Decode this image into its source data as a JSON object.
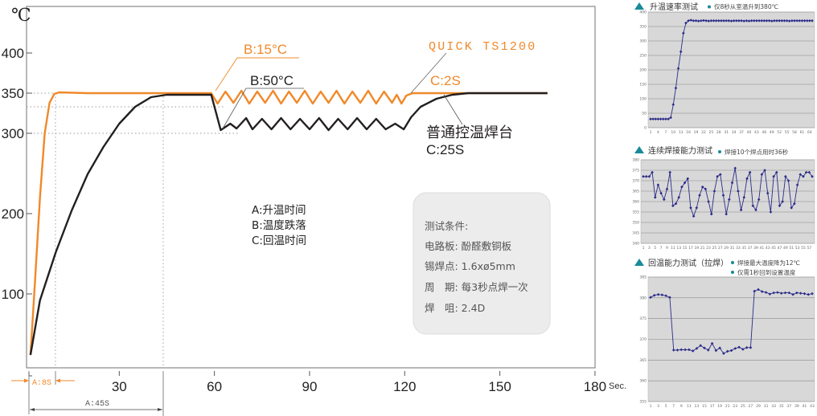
{
  "colors": {
    "orange": "#f0892a",
    "black": "#231f20",
    "mini_series": "#2a2a8a",
    "mini_bg": "#d8d8d8",
    "accent": "#1a8a9a",
    "panel": "#ececec"
  },
  "chart_data": [
    {
      "type": "line",
      "ylabel": "℃",
      "xlabel": "Sec.",
      "xlim": [
        0,
        180
      ],
      "ylim": [
        8,
        466
      ],
      "x_ticks": [
        30,
        60,
        90,
        120,
        150,
        180
      ],
      "y_ticks": [
        100,
        200,
        300,
        350,
        400
      ],
      "grid": false,
      "series": [
        {
          "name": "QUICK TS1200",
          "color": "#f0892a",
          "points": [
            [
              2,
              24
            ],
            [
              3.5,
              120
            ],
            [
              5,
              220
            ],
            [
              6.5,
              300
            ],
            [
              8,
              338
            ],
            [
              9.5,
              349
            ],
            [
              11,
              351
            ],
            [
              20,
              350
            ],
            [
              59,
              350
            ],
            [
              61,
              337
            ],
            [
              63.5,
              352
            ],
            [
              66,
              338
            ],
            [
              68.5,
              353
            ],
            [
              71,
              337
            ],
            [
              73.5,
              352
            ],
            [
              76,
              338
            ],
            [
              78.5,
              353
            ],
            [
              81,
              337
            ],
            [
              83.5,
              352
            ],
            [
              86,
              338
            ],
            [
              88.5,
              353
            ],
            [
              91,
              337
            ],
            [
              93.5,
              352
            ],
            [
              96,
              338
            ],
            [
              98.5,
              353
            ],
            [
              101,
              337
            ],
            [
              103.5,
              352
            ],
            [
              106,
              338
            ],
            [
              108.5,
              353
            ],
            [
              111,
              337
            ],
            [
              113.5,
              352
            ],
            [
              116,
              338
            ],
            [
              117.5,
              348
            ],
            [
              119,
              337
            ],
            [
              120.5,
              347
            ],
            [
              122.5,
              350
            ],
            [
              165,
              350
            ]
          ]
        },
        {
          "name": "普通控温焊台",
          "color": "#231f20",
          "points": [
            [
              2,
              24
            ],
            [
              5,
              92
            ],
            [
              10,
              152
            ],
            [
              15,
              204
            ],
            [
              20,
              249
            ],
            [
              25,
              283
            ],
            [
              30,
              312
            ],
            [
              35,
              333
            ],
            [
              40,
              345
            ],
            [
              45,
              348
            ],
            [
              59,
              348
            ],
            [
              62,
              304
            ],
            [
              65,
              312
            ],
            [
              67,
              306
            ],
            [
              70,
              319
            ],
            [
              72,
              305
            ],
            [
              75,
              318
            ],
            [
              78,
              305
            ],
            [
              81,
              319
            ],
            [
              84,
              305
            ],
            [
              87,
              318
            ],
            [
              90,
              305
            ],
            [
              93,
              319
            ],
            [
              96,
              304
            ],
            [
              99,
              318
            ],
            [
              102,
              305
            ],
            [
              105,
              319
            ],
            [
              108,
              305
            ],
            [
              111,
              318
            ],
            [
              114,
              305
            ],
            [
              117,
              312
            ],
            [
              119.7,
              305
            ],
            [
              122,
              320
            ],
            [
              125,
              333
            ],
            [
              130,
              343
            ],
            [
              135,
              348
            ],
            [
              140,
              350
            ],
            [
              165,
              350
            ]
          ]
        }
      ],
      "annotations": {
        "b_fast": "B:15°C",
        "b_slow": "B:50°C",
        "c_fast": "C:2S",
        "c_slow": "C:25S",
        "product_fast": "QUICK TS1200",
        "product_slow": "普通控温焊台",
        "a_fast": "A:8S",
        "a_slow": "A:45S"
      },
      "legend": [
        "A:升温时间",
        "B:温度跌落",
        "C:回温时间"
      ],
      "conditions": {
        "title": "测试条件:",
        "lines": [
          "电路板: 酚醛敷铜板",
          "锡焊点: 1.6xø5mm",
          "周　期: 每3秒点焊一次",
          "焊　咀: 2.4D"
        ]
      }
    },
    {
      "type": "line",
      "title": "升温速率测试",
      "notes": [
        "仅8秒从室温升到380℃"
      ],
      "ylim": [
        0,
        400
      ],
      "y_ticks": [
        0,
        50,
        100,
        150,
        200,
        250,
        300,
        350,
        400
      ],
      "x_ticks": [
        1,
        4,
        7,
        10,
        13,
        16,
        19,
        22,
        25,
        28,
        31,
        34,
        37,
        40,
        43,
        46,
        49,
        52,
        55,
        58,
        61,
        64
      ],
      "xlim": [
        1,
        65
      ],
      "grid": true,
      "values": [
        30,
        30,
        30,
        30,
        30,
        30,
        30,
        30,
        35,
        80,
        137,
        205,
        263,
        327,
        362,
        370,
        372,
        370,
        370,
        369,
        370,
        371,
        370,
        369,
        370,
        370,
        370,
        370,
        370,
        370,
        370,
        370,
        369,
        370,
        370,
        370,
        370,
        369,
        370,
        369,
        370,
        370,
        370,
        370,
        370,
        370,
        370,
        370,
        369,
        370,
        370,
        370,
        370,
        370,
        370,
        369,
        370,
        370,
        370,
        370,
        370,
        370,
        370,
        370,
        370
      ]
    },
    {
      "type": "line",
      "title": "连续焊接能力测试",
      "notes": [
        "焊接10个焊点用时36秒"
      ],
      "ylim": [
        340,
        380
      ],
      "y_ticks": [
        340,
        345,
        350,
        355,
        360,
        365,
        370,
        375,
        380
      ],
      "x_ticks": [
        1,
        3,
        5,
        7,
        9,
        11,
        13,
        15,
        17,
        19,
        21,
        23,
        25,
        27,
        29,
        31,
        33,
        35,
        37,
        39,
        41,
        43,
        45,
        47,
        49,
        51,
        53,
        55,
        57
      ],
      "xlim": [
        1,
        58
      ],
      "grid": true,
      "values": [
        372,
        372,
        372,
        374,
        362,
        368,
        364,
        361,
        366,
        374,
        358,
        359,
        362,
        367,
        369,
        371,
        357,
        353,
        357,
        363,
        367,
        366,
        360,
        354,
        365,
        372,
        373,
        363,
        354,
        361,
        369,
        376,
        365,
        356,
        362,
        371,
        374,
        358,
        356,
        361,
        373,
        375,
        364,
        355,
        372,
        374,
        358,
        360,
        372,
        370,
        357,
        359,
        368,
        373,
        372,
        374,
        374,
        372
      ]
    },
    {
      "type": "line",
      "title": "回温能力测试（拉焊）",
      "notes": [
        "焊接最大温度降为12℃",
        "仅需1秒回到设置温度"
      ],
      "ylim": [
        355,
        385
      ],
      "y_ticks": [
        355,
        360,
        365,
        370,
        375,
        380,
        385
      ],
      "x_ticks": [
        1,
        3,
        5,
        7,
        9,
        11,
        13,
        15,
        17,
        19,
        21,
        23,
        25,
        27,
        29,
        31,
        33,
        35,
        37,
        39,
        41,
        43
      ],
      "xlim": [
        1,
        43
      ],
      "grid": true,
      "values": [
        380.1,
        380.6,
        380.8,
        380.7,
        380.5,
        380.1,
        367.4,
        367.4,
        367.5,
        367.5,
        367.5,
        367.2,
        367.8,
        368.5,
        367.9,
        367.4,
        369,
        367.3,
        367.9,
        366.6,
        367.1,
        367.3,
        367.8,
        368.1,
        367.6,
        368,
        368,
        381.6,
        382,
        381.5,
        381.3,
        380.9,
        381.2,
        381.3,
        381.1,
        381.2,
        381.2,
        380.8,
        381.2,
        381.1,
        381,
        380.8,
        381
      ]
    }
  ]
}
